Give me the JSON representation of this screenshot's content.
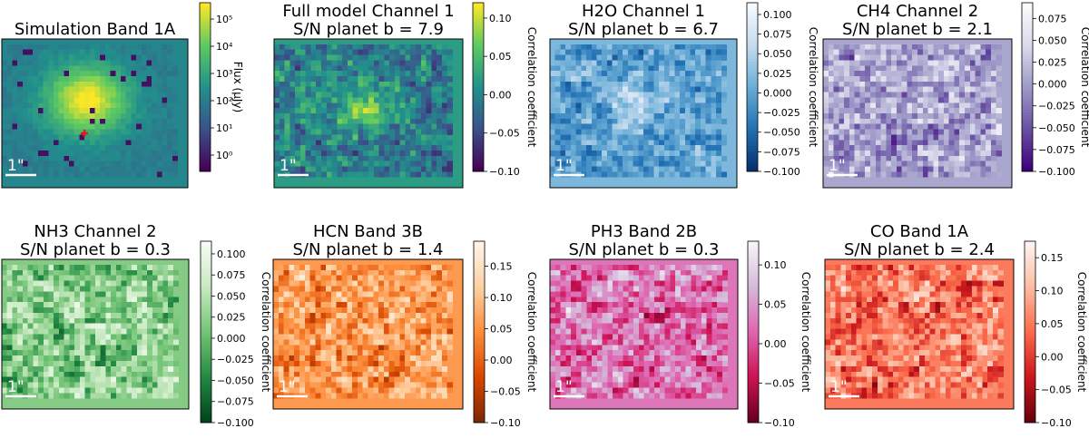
{
  "chart_data": [
    {
      "type": "heatmap",
      "title": "Simulation Band 1A",
      "cmap": "viridis",
      "cbar_label": "Flux (μJy)",
      "cbar_scale": "log",
      "cbar_ticks": [
        "10⁰",
        "10¹",
        "10²",
        "10³",
        "10⁴",
        "10⁵"
      ],
      "cbar_tick_values": [
        0,
        1,
        2,
        3,
        4,
        5
      ],
      "cbar_range": [
        -0.6,
        5.6
      ],
      "scalebar_label": "1\"",
      "marker": "red cross"
    },
    {
      "type": "heatmap",
      "title": "Full model Channel 1",
      "subtitle": "S/N planet b = 7.9",
      "cmap": "viridis",
      "cbar_label": "Correlation coefficient",
      "cbar_ticks": [
        "0.10",
        "0.05",
        "0.00",
        "−0.05",
        "−0.10"
      ],
      "cbar_tick_values": [
        0.1,
        0.05,
        0.0,
        -0.05,
        -0.1
      ],
      "cbar_range": [
        -0.1,
        0.12
      ],
      "scalebar_label": "1\""
    },
    {
      "type": "heatmap",
      "title": "H2O Channel 1",
      "subtitle": "S/N planet b = 6.7",
      "cmap": "blues",
      "cbar_label": "Correlation coefficient",
      "cbar_ticks": [
        "0.100",
        "0.075",
        "0.050",
        "0.025",
        "0.000",
        "−0.025",
        "−0.050",
        "−0.075",
        "−0.100"
      ],
      "cbar_tick_values": [
        0.1,
        0.075,
        0.05,
        0.025,
        0.0,
        -0.025,
        -0.05,
        -0.075,
        -0.1
      ],
      "cbar_range": [
        -0.1,
        0.115
      ],
      "scalebar_label": "1\""
    },
    {
      "type": "heatmap",
      "title": "CH4 Channel 2",
      "subtitle": "S/N planet b = 2.1",
      "cmap": "purples",
      "cbar_label": "Correlation coefficient",
      "cbar_ticks": [
        "0.075",
        "0.050",
        "0.025",
        "0.000",
        "−0.025",
        "−0.050",
        "−0.075",
        "−0.100"
      ],
      "cbar_tick_values": [
        0.075,
        0.05,
        0.025,
        0.0,
        -0.025,
        -0.05,
        -0.075,
        -0.1
      ],
      "cbar_range": [
        -0.1,
        0.093
      ],
      "scalebar_label": "1\""
    },
    {
      "type": "heatmap",
      "title": "NH3 Channel 2",
      "subtitle": "S/N planet b = 0.3",
      "cmap": "greens",
      "cbar_label": "Correlation coefficient",
      "cbar_ticks": [
        "0.100",
        "0.075",
        "0.050",
        "0.025",
        "0.000",
        "−0.025",
        "−0.050",
        "−0.075",
        "−0.100"
      ],
      "cbar_tick_values": [
        0.1,
        0.075,
        0.05,
        0.025,
        0.0,
        -0.025,
        -0.05,
        -0.075,
        -0.1
      ],
      "cbar_range": [
        -0.1,
        0.115
      ],
      "scalebar_label": "1\""
    },
    {
      "type": "heatmap",
      "title": "HCN Band 3B",
      "subtitle": "S/N planet b = 1.4",
      "cmap": "oranges",
      "cbar_label": "Correlation coefficient",
      "cbar_ticks": [
        "0.15",
        "0.10",
        "0.05",
        "0.00",
        "−0.05",
        "−0.10"
      ],
      "cbar_tick_values": [
        0.15,
        0.1,
        0.05,
        0.0,
        -0.05,
        -0.1
      ],
      "cbar_range": [
        -0.1,
        0.19
      ],
      "scalebar_label": "1\""
    },
    {
      "type": "heatmap",
      "title": "PH3 Band 2B",
      "subtitle": "S/N planet b = 0.3",
      "cmap": "pinks",
      "cbar_label": "Correlation coefficient",
      "cbar_ticks": [
        "0.10",
        "0.05",
        "0.00",
        "−0.05",
        "−0.10"
      ],
      "cbar_tick_values": [
        0.1,
        0.05,
        0.0,
        -0.05,
        -0.1
      ],
      "cbar_range": [
        -0.1,
        0.13
      ],
      "scalebar_label": "1\""
    },
    {
      "type": "heatmap",
      "title": "CO Band 1A",
      "subtitle": "S/N planet b = 2.4",
      "cmap": "reds",
      "cbar_label": "Correlation coefficient",
      "cbar_ticks": [
        "0.15",
        "0.10",
        "0.05",
        "0.00",
        "−0.05",
        "−0.10"
      ],
      "cbar_tick_values": [
        0.15,
        0.1,
        0.05,
        0.0,
        -0.05,
        -0.1
      ],
      "cbar_range": [
        -0.1,
        0.175
      ],
      "scalebar_label": "1\""
    }
  ],
  "colors": {
    "viridis": [
      "#440154",
      "#3b528b",
      "#21918c",
      "#5ec962",
      "#fde725"
    ],
    "blues": [
      "#08306b",
      "#2171b5",
      "#6baed6",
      "#c6dbef",
      "#f7fbff"
    ],
    "purples": [
      "#3f007d",
      "#6a51a3",
      "#9e9ac8",
      "#dadaeb",
      "#fcfbfd"
    ],
    "greens": [
      "#00441b",
      "#238b45",
      "#74c476",
      "#c7e9c0",
      "#f7fcf5"
    ],
    "oranges": [
      "#7f2704",
      "#d94801",
      "#fd8d3c",
      "#fdd0a2",
      "#fff5eb"
    ],
    "pinks": [
      "#67001f",
      "#ce1256",
      "#df65b0",
      "#d4b9da",
      "#f7f4f9"
    ],
    "reds": [
      "#67000d",
      "#cb181d",
      "#fb6a4a",
      "#fcbba1",
      "#fff5f0"
    ],
    "marker": "#e41a1c"
  }
}
